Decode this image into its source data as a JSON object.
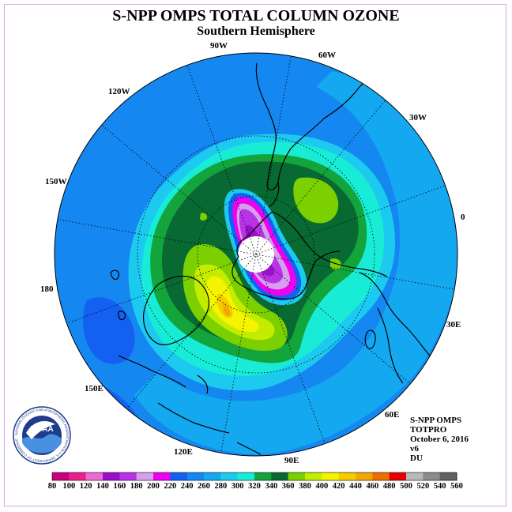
{
  "header": {
    "title": "S-NPP OMPS TOTAL COLUMN OZONE",
    "subtitle": "Southern Hemisphere"
  },
  "map": {
    "projection": "south-polar-stereographic",
    "longitude_labels": [
      "0",
      "30W",
      "60W",
      "90W",
      "120W",
      "150W",
      "180",
      "150E",
      "120E",
      "90E",
      "60E",
      "30E"
    ],
    "no_data_color": "#ffffff",
    "coastline_color": "#000000",
    "graticule": "dotted"
  },
  "info": {
    "lines": [
      "S-NPP OMPS",
      "TOTPRO",
      "October 6, 2016",
      "v6",
      "DU"
    ]
  },
  "logo": {
    "name": "NOAA",
    "ring_text": "NATIONAL OCEANIC AND ATMOSPHERIC ADMINISTRATION U.S. DEPARTMENT OF COMMERCE"
  },
  "colorbar": {
    "unit": "DU",
    "labels": [
      "80",
      "100",
      "120",
      "140",
      "160",
      "180",
      "200",
      "220",
      "240",
      "260",
      "280",
      "300",
      "320",
      "340",
      "360",
      "380",
      "400",
      "420",
      "440",
      "460",
      "480",
      "500",
      "520",
      "540",
      "560"
    ],
    "colors": [
      "#c8007a",
      "#ec1e8c",
      "#ee6ad0",
      "#9a10ca",
      "#b832e6",
      "#d4a0ea",
      "#f000f0",
      "#1460f0",
      "#1488f0",
      "#14a8f0",
      "#1ccaf0",
      "#18ecd6",
      "#14a43c",
      "#086a32",
      "#7cd000",
      "#c4ec00",
      "#f4f400",
      "#f4cc00",
      "#f0a800",
      "#ec7000",
      "#e80000",
      "#b8b8b8",
      "#8c8c8c",
      "#606060"
    ]
  }
}
